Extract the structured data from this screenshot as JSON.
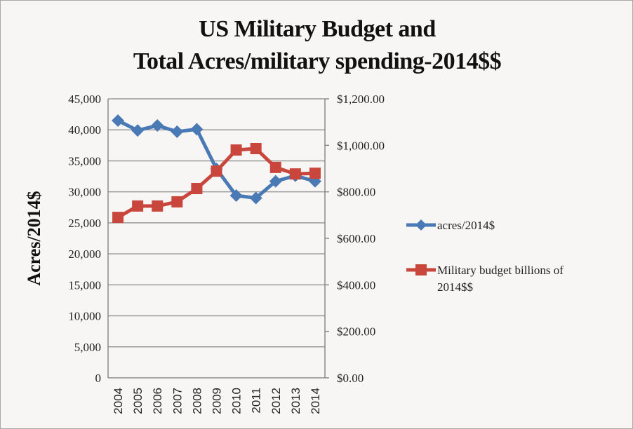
{
  "chart_data": {
    "type": "line",
    "title": "US Military Budget and Total Acres/military spending-2014$$",
    "title_lines": [
      "US Military Budget and",
      "Total Acres/military spending-2014$$"
    ],
    "xlabel": "",
    "ylabel": "Acres/2014$",
    "y2label": "",
    "categories": [
      "2004",
      "2005",
      "2006",
      "2007",
      "2008",
      "2009",
      "2010",
      "2011",
      "2012",
      "2013",
      "2014"
    ],
    "ylim": [
      0,
      45000
    ],
    "y_ticks": [
      0,
      5000,
      10000,
      15000,
      20000,
      25000,
      30000,
      35000,
      40000,
      45000
    ],
    "y_tick_labels": [
      "0",
      "5,000",
      "10,000",
      "15,000",
      "20,000",
      "25,000",
      "30,000",
      "35,000",
      "40,000",
      "45,000"
    ],
    "y2lim": [
      0,
      1200
    ],
    "y2_ticks": [
      0,
      200,
      400,
      600,
      800,
      1000,
      1200
    ],
    "y2_tick_labels": [
      "$0.00",
      "$200.00",
      "$400.00",
      "$600.00",
      "$800.00",
      "$1,000.00",
      "$1,200.00"
    ],
    "grid": true,
    "legend_position": "right",
    "series": [
      {
        "name": "acres/2014$",
        "axis": "left",
        "color": "#4a7ab5",
        "marker": "diamond",
        "values": [
          41500,
          39900,
          40700,
          39700,
          40100,
          33700,
          29400,
          29000,
          31700,
          32600,
          31700
        ]
      },
      {
        "name": "Military budget billions of 2014$$",
        "axis": "right",
        "color": "#c9463d",
        "marker": "square",
        "values": [
          690,
          739,
          739,
          757,
          814,
          889,
          980,
          986,
          905,
          877,
          880
        ]
      }
    ],
    "legend_lines": [
      [
        "acres/2014$"
      ],
      [
        "Military budget billions of",
        "2014$$"
      ]
    ]
  }
}
